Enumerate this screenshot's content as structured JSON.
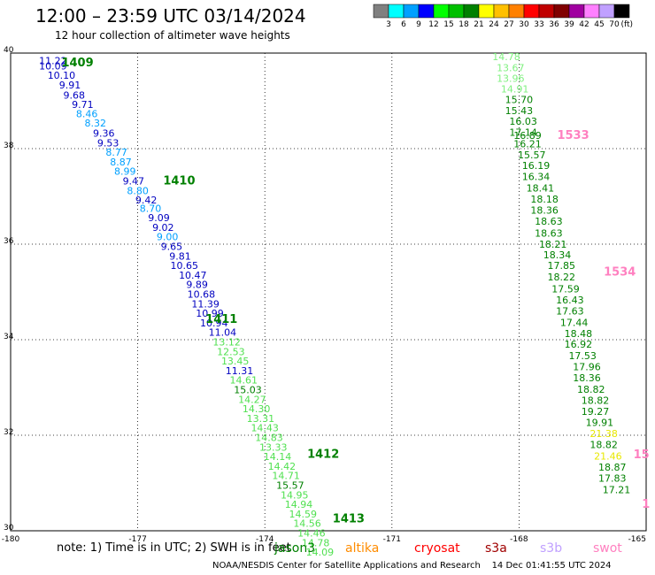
{
  "header": {
    "title": "12:00 – 23:59 UTC 03/14/2024",
    "subtitle": "12 hour collection of altimeter wave heights"
  },
  "colorbar": {
    "labels": [
      "3",
      "6",
      "9",
      "12",
      "15",
      "18",
      "21",
      "24",
      "27",
      "30",
      "33",
      "36",
      "39",
      "42",
      "45",
      "70"
    ],
    "unit": "(ft)",
    "colors": [
      "#808080",
      "#00ffff",
      "#00a0ff",
      "#0000ff",
      "#00ff00",
      "#00c000",
      "#008000",
      "#ffff00",
      "#ffc000",
      "#ff8000",
      "#ff0000",
      "#c00000",
      "#800000",
      "#a000a0",
      "#ff80ff",
      "#c0a0ff",
      "#000000"
    ]
  },
  "map": {
    "lon_labels": [
      "-180",
      "-177",
      "-174",
      "-171",
      "-168",
      "-165"
    ],
    "lat_labels": [
      "40",
      "38",
      "36",
      "34",
      "32",
      "30"
    ],
    "lon_range": [
      -180,
      -165
    ],
    "lat_range": [
      30,
      40
    ],
    "grid": "dotted"
  },
  "track_labels": [
    {
      "text": "1409",
      "color": "#008000",
      "lon": -178.8,
      "lat": 39.72
    },
    {
      "text": "1410",
      "color": "#008000",
      "lon": -176.4,
      "lat": 37.25
    },
    {
      "text": "1411",
      "color": "#008000",
      "lon": -175.4,
      "lat": 34.35
    },
    {
      "text": "1412",
      "color": "#008000",
      "lon": -173.0,
      "lat": 31.53
    },
    {
      "text": "1413",
      "color": "#008000",
      "lon": -172.4,
      "lat": 30.18
    },
    {
      "text": "1533",
      "color": "#ff80c0",
      "lon": -167.1,
      "lat": 38.2
    },
    {
      "text": "1534",
      "color": "#ff80c0",
      "lon": -166.0,
      "lat": 35.34
    },
    {
      "text": "15",
      "color": "#ff80c0",
      "lon": -165.3,
      "lat": 31.52
    },
    {
      "text": "1",
      "color": "#ff80c0",
      "lon": -165.1,
      "lat": 30.48
    }
  ],
  "observations": [
    {
      "v": "11.22",
      "c": "#0000c0",
      "lon": -179.0,
      "lat": 39.77
    },
    {
      "v": "10.09",
      "c": "#0000c0",
      "lon": -179.0,
      "lat": 39.66
    },
    {
      "v": "10.10",
      "c": "#0000c0",
      "lon": -178.8,
      "lat": 39.46
    },
    {
      "v": "9.91",
      "c": "#0000c0",
      "lon": -178.6,
      "lat": 39.26
    },
    {
      "v": "9.68",
      "c": "#0000c0",
      "lon": -178.5,
      "lat": 39.05
    },
    {
      "v": "9.71",
      "c": "#0000c0",
      "lon": -178.3,
      "lat": 38.85
    },
    {
      "v": "8.46",
      "c": "#00a0ff",
      "lon": -178.2,
      "lat": 38.66
    },
    {
      "v": "8.32",
      "c": "#00a0ff",
      "lon": -178.0,
      "lat": 38.46
    },
    {
      "v": "9.36",
      "c": "#0000c0",
      "lon": -177.8,
      "lat": 38.25
    },
    {
      "v": "9.53",
      "c": "#0000c0",
      "lon": -177.7,
      "lat": 38.05
    },
    {
      "v": "8.77",
      "c": "#00a0ff",
      "lon": -177.5,
      "lat": 37.85
    },
    {
      "v": "8.87",
      "c": "#00a0ff",
      "lon": -177.4,
      "lat": 37.65
    },
    {
      "v": "8.99",
      "c": "#00a0ff",
      "lon": -177.3,
      "lat": 37.45
    },
    {
      "v": "9.47",
      "c": "#0000c0",
      "lon": -177.1,
      "lat": 37.25
    },
    {
      "v": "8.80",
      "c": "#00a0ff",
      "lon": -177.0,
      "lat": 37.05
    },
    {
      "v": "9.42",
      "c": "#0000c0",
      "lon": -176.8,
      "lat": 36.85
    },
    {
      "v": "8.70",
      "c": "#00a0ff",
      "lon": -176.7,
      "lat": 36.68
    },
    {
      "v": "9.09",
      "c": "#0000c0",
      "lon": -176.5,
      "lat": 36.48
    },
    {
      "v": "9.02",
      "c": "#0000c0",
      "lon": -176.4,
      "lat": 36.28
    },
    {
      "v": "9.00",
      "c": "#00a0ff",
      "lon": -176.3,
      "lat": 36.08
    },
    {
      "v": "9.65",
      "c": "#0000c0",
      "lon": -176.2,
      "lat": 35.88
    },
    {
      "v": "9.81",
      "c": "#0000c0",
      "lon": -176.0,
      "lat": 35.68
    },
    {
      "v": "10.65",
      "c": "#0000c0",
      "lon": -175.9,
      "lat": 35.48
    },
    {
      "v": "10.47",
      "c": "#0000c0",
      "lon": -175.7,
      "lat": 35.28
    },
    {
      "v": "9.89",
      "c": "#0000c0",
      "lon": -175.6,
      "lat": 35.08
    },
    {
      "v": "10.68",
      "c": "#0000c0",
      "lon": -175.5,
      "lat": 34.88
    },
    {
      "v": "11.39",
      "c": "#0000c0",
      "lon": -175.4,
      "lat": 34.68
    },
    {
      "v": "10.99",
      "c": "#0000c0",
      "lon": -175.3,
      "lat": 34.48
    },
    {
      "v": "10.94",
      "c": "#0000c0",
      "lon": -175.2,
      "lat": 34.28
    },
    {
      "v": "11.04",
      "c": "#0000c0",
      "lon": -175.0,
      "lat": 34.08
    },
    {
      "v": "13.12",
      "c": "#50e050",
      "lon": -174.9,
      "lat": 33.88
    },
    {
      "v": "12.53",
      "c": "#50e050",
      "lon": -174.8,
      "lat": 33.68
    },
    {
      "v": "13.45",
      "c": "#50e050",
      "lon": -174.7,
      "lat": 33.48
    },
    {
      "v": "11.31",
      "c": "#0000c0",
      "lon": -174.6,
      "lat": 33.28
    },
    {
      "v": "14.61",
      "c": "#50e050",
      "lon": -174.5,
      "lat": 33.08
    },
    {
      "v": "15.03",
      "c": "#008000",
      "lon": -174.4,
      "lat": 32.88
    },
    {
      "v": "14.27",
      "c": "#50e050",
      "lon": -174.3,
      "lat": 32.68
    },
    {
      "v": "14.30",
      "c": "#50e050",
      "lon": -174.2,
      "lat": 32.48
    },
    {
      "v": "13.31",
      "c": "#50e050",
      "lon": -174.1,
      "lat": 32.28
    },
    {
      "v": "14.43",
      "c": "#50e050",
      "lon": -174.0,
      "lat": 32.08
    },
    {
      "v": "14.83",
      "c": "#50e050",
      "lon": -173.9,
      "lat": 31.88
    },
    {
      "v": "13.33",
      "c": "#50e050",
      "lon": -173.8,
      "lat": 31.68
    },
    {
      "v": "14.14",
      "c": "#50e050",
      "lon": -173.7,
      "lat": 31.48
    },
    {
      "v": "14.42",
      "c": "#50e050",
      "lon": -173.6,
      "lat": 31.28
    },
    {
      "v": "14.71",
      "c": "#50e050",
      "lon": -173.5,
      "lat": 31.08
    },
    {
      "v": "15.57",
      "c": "#008000",
      "lon": -173.4,
      "lat": 30.88
    },
    {
      "v": "14.95",
      "c": "#50e050",
      "lon": -173.3,
      "lat": 30.68
    },
    {
      "v": "14.94",
      "c": "#50e050",
      "lon": -173.2,
      "lat": 30.48
    },
    {
      "v": "14.59",
      "c": "#50e050",
      "lon": -173.1,
      "lat": 30.28
    },
    {
      "v": "14.56",
      "c": "#50e050",
      "lon": -173.0,
      "lat": 30.08
    },
    {
      "v": "14.46",
      "c": "#50e050",
      "lon": -172.9,
      "lat": 29.88
    },
    {
      "v": "14.78",
      "c": "#50e050",
      "lon": -172.8,
      "lat": 29.68
    },
    {
      "v": "14.09",
      "c": "#50e050",
      "lon": -172.7,
      "lat": 29.48
    },
    {
      "v": "14.78",
      "c": "#80f080",
      "lon": -168.3,
      "lat": 39.85
    },
    {
      "v": "13.67",
      "c": "#80f080",
      "lon": -168.2,
      "lat": 39.62
    },
    {
      "v": "13.96",
      "c": "#80f080",
      "lon": -168.2,
      "lat": 39.4
    },
    {
      "v": "14.91",
      "c": "#80f080",
      "lon": -168.1,
      "lat": 39.18
    },
    {
      "v": "15.70",
      "c": "#008000",
      "lon": -168.0,
      "lat": 38.95
    },
    {
      "v": "15.43",
      "c": "#008000",
      "lon": -168.0,
      "lat": 38.72
    },
    {
      "v": "16.03",
      "c": "#008000",
      "lon": -167.9,
      "lat": 38.5
    },
    {
      "v": "17.14",
      "c": "#008000",
      "lon": -167.9,
      "lat": 38.27
    },
    {
      "v": "16.89",
      "c": "#008000",
      "lon": -167.8,
      "lat": 38.2
    },
    {
      "v": "16.21",
      "c": "#008000",
      "lon": -167.8,
      "lat": 38.03
    },
    {
      "v": "15.57",
      "c": "#008000",
      "lon": -167.7,
      "lat": 37.8
    },
    {
      "v": "16.19",
      "c": "#008000",
      "lon": -167.6,
      "lat": 37.57
    },
    {
      "v": "16.34",
      "c": "#008000",
      "lon": -167.6,
      "lat": 37.34
    },
    {
      "v": "18.41",
      "c": "#008000",
      "lon": -167.5,
      "lat": 37.1
    },
    {
      "v": "18.18",
      "c": "#008000",
      "lon": -167.4,
      "lat": 36.87
    },
    {
      "v": "18.36",
      "c": "#008000",
      "lon": -167.4,
      "lat": 36.64
    },
    {
      "v": "18.63",
      "c": "#008000",
      "lon": -167.3,
      "lat": 36.41
    },
    {
      "v": "18.63",
      "c": "#008000",
      "lon": -167.3,
      "lat": 36.16
    },
    {
      "v": "18.21",
      "c": "#008000",
      "lon": -167.2,
      "lat": 35.93
    },
    {
      "v": "18.34",
      "c": "#008000",
      "lon": -167.1,
      "lat": 35.7
    },
    {
      "v": "17.85",
      "c": "#008000",
      "lon": -167.0,
      "lat": 35.48
    },
    {
      "v": "18.22",
      "c": "#008000",
      "lon": -167.0,
      "lat": 35.24
    },
    {
      "v": "17.59",
      "c": "#008000",
      "lon": -166.9,
      "lat": 34.99
    },
    {
      "v": "16.43",
      "c": "#008000",
      "lon": -166.8,
      "lat": 34.76
    },
    {
      "v": "17.63",
      "c": "#008000",
      "lon": -166.8,
      "lat": 34.53
    },
    {
      "v": "17.44",
      "c": "#008000",
      "lon": -166.7,
      "lat": 34.29
    },
    {
      "v": "18.48",
      "c": "#008000",
      "lon": -166.6,
      "lat": 34.06
    },
    {
      "v": "16.92",
      "c": "#008000",
      "lon": -166.6,
      "lat": 33.83
    },
    {
      "v": "17.53",
      "c": "#008000",
      "lon": -166.5,
      "lat": 33.59
    },
    {
      "v": "17.96",
      "c": "#008000",
      "lon": -166.4,
      "lat": 33.36
    },
    {
      "v": "18.36",
      "c": "#008000",
      "lon": -166.4,
      "lat": 33.13
    },
    {
      "v": "18.82",
      "c": "#008000",
      "lon": -166.3,
      "lat": 32.89
    },
    {
      "v": "18.82",
      "c": "#008000",
      "lon": -166.2,
      "lat": 32.66
    },
    {
      "v": "19.27",
      "c": "#008000",
      "lon": -166.2,
      "lat": 32.43
    },
    {
      "v": "19.91",
      "c": "#008000",
      "lon": -166.1,
      "lat": 32.19
    },
    {
      "v": "21.38",
      "c": "#e8e800",
      "lon": -166.0,
      "lat": 31.96
    },
    {
      "v": "18.82",
      "c": "#008000",
      "lon": -166.0,
      "lat": 31.73
    },
    {
      "v": "21.46",
      "c": "#e8e800",
      "lon": -165.9,
      "lat": 31.49
    },
    {
      "v": "18.87",
      "c": "#008000",
      "lon": -165.8,
      "lat": 31.26
    },
    {
      "v": "17.83",
      "c": "#008000",
      "lon": -165.8,
      "lat": 31.03
    },
    {
      "v": "17.21",
      "c": "#008000",
      "lon": -165.7,
      "lat": 30.79
    }
  ],
  "note": "note: 1) Time is in UTC; 2) SWH is in feet",
  "missions": [
    {
      "name": "jason3",
      "color": "#008000"
    },
    {
      "name": "altika",
      "color": "#ff8c00"
    },
    {
      "name": "cryosat",
      "color": "#ff0000"
    },
    {
      "name": "s3a",
      "color": "#a00000"
    },
    {
      "name": "s3b",
      "color": "#c0a0ff"
    },
    {
      "name": "swot",
      "color": "#ff80c0"
    }
  ],
  "footer": "NOAA/NESDIS Center for Satellite Applications and Research    14 Dec 01:41:55 UTC 2024"
}
